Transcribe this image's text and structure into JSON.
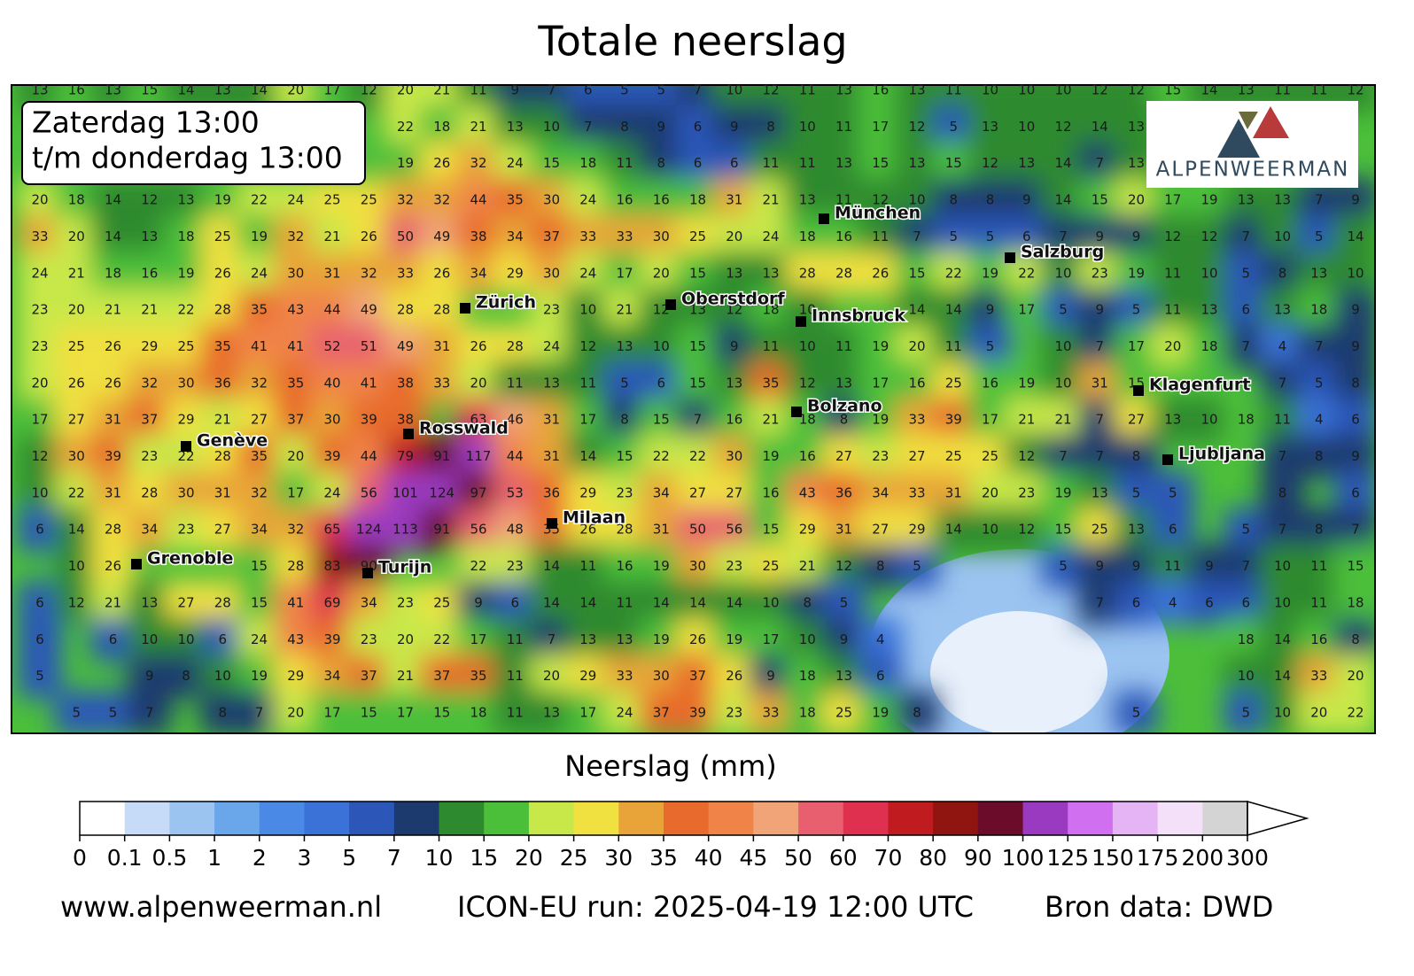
{
  "title": "Totale neerslag",
  "period": [
    "Zaterdag 13:00",
    "t/m donderdag 13:00"
  ],
  "logo": "ALPENWEERMAN",
  "grid": {
    "rows": [
      [
        13,
        16,
        13,
        15,
        14,
        13,
        14,
        20,
        17,
        12,
        20,
        21,
        11,
        9,
        7,
        6,
        5,
        5,
        7,
        10,
        12,
        11,
        13,
        16,
        13,
        11,
        10,
        10,
        10,
        12,
        12,
        15,
        14,
        13,
        11,
        11,
        12
      ],
      [
        null,
        null,
        null,
        null,
        null,
        null,
        null,
        null,
        null,
        null,
        22,
        18,
        21,
        13,
        10,
        7,
        8,
        9,
        6,
        9,
        8,
        10,
        11,
        17,
        12,
        5,
        13,
        10,
        12,
        14,
        13,
        null,
        null,
        null,
        null,
        null,
        null
      ],
      [
        null,
        null,
        null,
        null,
        null,
        null,
        null,
        null,
        null,
        null,
        19,
        26,
        32,
        24,
        15,
        18,
        11,
        8,
        6,
        6,
        11,
        11,
        13,
        15,
        13,
        15,
        12,
        13,
        14,
        7,
        13,
        null,
        null,
        null,
        null,
        null,
        null
      ],
      [
        20,
        18,
        14,
        12,
        13,
        19,
        22,
        24,
        25,
        25,
        32,
        32,
        44,
        35,
        30,
        24,
        16,
        16,
        18,
        31,
        21,
        13,
        11,
        12,
        10,
        8,
        8,
        9,
        14,
        15,
        20,
        17,
        19,
        13,
        13,
        7,
        9
      ],
      [
        33,
        20,
        14,
        13,
        18,
        25,
        19,
        32,
        21,
        26,
        50,
        49,
        38,
        34,
        37,
        33,
        33,
        30,
        25,
        20,
        24,
        18,
        16,
        11,
        7,
        5,
        5,
        6,
        7,
        9,
        9,
        12,
        12,
        7,
        10,
        5,
        14
      ],
      [
        24,
        21,
        18,
        16,
        19,
        26,
        24,
        30,
        31,
        32,
        33,
        26,
        34,
        29,
        30,
        24,
        17,
        20,
        15,
        13,
        13,
        28,
        28,
        26,
        15,
        22,
        19,
        22,
        10,
        23,
        19,
        11,
        10,
        5,
        8,
        13,
        10
      ],
      [
        23,
        20,
        21,
        21,
        22,
        28,
        35,
        43,
        44,
        49,
        28,
        28,
        null,
        null,
        23,
        10,
        21,
        12,
        13,
        12,
        18,
        10,
        null,
        null,
        14,
        14,
        9,
        17,
        5,
        9,
        5,
        11,
        13,
        6,
        13,
        18,
        9
      ],
      [
        23,
        25,
        26,
        29,
        25,
        35,
        41,
        41,
        52,
        51,
        49,
        31,
        26,
        28,
        24,
        12,
        13,
        10,
        15,
        9,
        11,
        10,
        11,
        19,
        20,
        11,
        5,
        null,
        10,
        7,
        17,
        20,
        18,
        7,
        4,
        7,
        9
      ],
      [
        20,
        26,
        26,
        32,
        30,
        36,
        32,
        35,
        40,
        41,
        38,
        33,
        20,
        11,
        13,
        11,
        5,
        6,
        15,
        13,
        35,
        12,
        13,
        17,
        16,
        25,
        16,
        19,
        10,
        31,
        15,
        null,
        null,
        null,
        7,
        5,
        8
      ],
      [
        17,
        27,
        31,
        37,
        29,
        21,
        27,
        37,
        30,
        39,
        38,
        null,
        63,
        46,
        31,
        17,
        8,
        15,
        7,
        16,
        21,
        18,
        8,
        19,
        33,
        39,
        17,
        21,
        21,
        7,
        27,
        13,
        10,
        18,
        11,
        4,
        6
      ],
      [
        12,
        30,
        39,
        23,
        22,
        28,
        35,
        20,
        39,
        44,
        79,
        91,
        117,
        44,
        31,
        14,
        15,
        22,
        22,
        30,
        19,
        16,
        27,
        23,
        27,
        25,
        25,
        12,
        7,
        7,
        8,
        null,
        null,
        null,
        7,
        8,
        9
      ],
      [
        10,
        22,
        31,
        28,
        30,
        31,
        32,
        17,
        24,
        56,
        101,
        124,
        97,
        53,
        36,
        29,
        23,
        34,
        27,
        27,
        16,
        43,
        36,
        34,
        33,
        31,
        20,
        23,
        19,
        13,
        5,
        5,
        null,
        null,
        8,
        null,
        6
      ],
      [
        6,
        14,
        28,
        34,
        23,
        27,
        34,
        32,
        65,
        124,
        113,
        91,
        56,
        48,
        35,
        26,
        28,
        31,
        50,
        56,
        15,
        29,
        31,
        27,
        29,
        14,
        10,
        12,
        15,
        25,
        13,
        6,
        null,
        5,
        7,
        8,
        7
      ],
      [
        null,
        10,
        26,
        null,
        null,
        null,
        15,
        28,
        83,
        90,
        null,
        null,
        22,
        23,
        14,
        11,
        16,
        19,
        30,
        23,
        25,
        21,
        12,
        8,
        5,
        null,
        null,
        null,
        5,
        9,
        9,
        11,
        9,
        7,
        10,
        11,
        15
      ],
      [
        6,
        12,
        21,
        13,
        27,
        28,
        15,
        41,
        69,
        34,
        23,
        25,
        9,
        6,
        14,
        14,
        11,
        14,
        14,
        14,
        10,
        8,
        5,
        null,
        null,
        null,
        null,
        null,
        null,
        7,
        6,
        4,
        6,
        6,
        10,
        11,
        18
      ],
      [
        6,
        null,
        6,
        10,
        10,
        6,
        24,
        43,
        39,
        23,
        20,
        22,
        17,
        11,
        7,
        13,
        13,
        19,
        26,
        19,
        17,
        10,
        9,
        4,
        null,
        null,
        null,
        null,
        null,
        null,
        null,
        null,
        null,
        18,
        14,
        16,
        8
      ],
      [
        5,
        null,
        null,
        9,
        8,
        10,
        19,
        29,
        34,
        37,
        21,
        37,
        35,
        11,
        20,
        29,
        33,
        30,
        37,
        26,
        9,
        18,
        13,
        6,
        null,
        null,
        null,
        null,
        null,
        null,
        null,
        null,
        null,
        10,
        14,
        33,
        20
      ],
      [
        null,
        5,
        5,
        7,
        null,
        8,
        7,
        20,
        17,
        15,
        17,
        15,
        18,
        11,
        13,
        17,
        24,
        37,
        39,
        23,
        33,
        18,
        25,
        19,
        8,
        null,
        null,
        null,
        null,
        null,
        5,
        null,
        null,
        5,
        10,
        20,
        22
      ]
    ]
  },
  "cities": [
    "München",
    "Salzburg",
    "Zürich",
    "Oberstdorf",
    "Innsbruck",
    "Klagenfurt",
    "Bolzano",
    "Rosswald",
    "Genève",
    "Ljubljana",
    "Milaan",
    "Grenoble",
    "Turijn"
  ],
  "colorbar": {
    "label": "Neerslag (mm)",
    "ticks": [
      0,
      0.1,
      0.5,
      1,
      2,
      3,
      5,
      7,
      10,
      15,
      20,
      25,
      30,
      35,
      40,
      45,
      50,
      60,
      70,
      80,
      90,
      100,
      125,
      150,
      175,
      200,
      300
    ],
    "colors": [
      "#ffffff",
      "#c6dbf7",
      "#9cc4f0",
      "#6aa6ea",
      "#4a8ae6",
      "#3a72d8",
      "#2c56b8",
      "#1c3a6e",
      "#2e8a2e",
      "#4cbf3a",
      "#c8e84a",
      "#f0e040",
      "#e8a438",
      "#e86a2c",
      "#f08448",
      "#f0a478",
      "#e86070",
      "#e03050",
      "#c01c20",
      "#901410",
      "#6a0c2a",
      "#9a3ac0",
      "#d070f0",
      "#e4b4f4",
      "#f4e0f8",
      "#d4d4d4"
    ]
  },
  "footer": [
    "www.alpenweerman.nl",
    "ICON-EU run: 2025-04-19 12:00 UTC",
    "Bron data: DWD"
  ]
}
